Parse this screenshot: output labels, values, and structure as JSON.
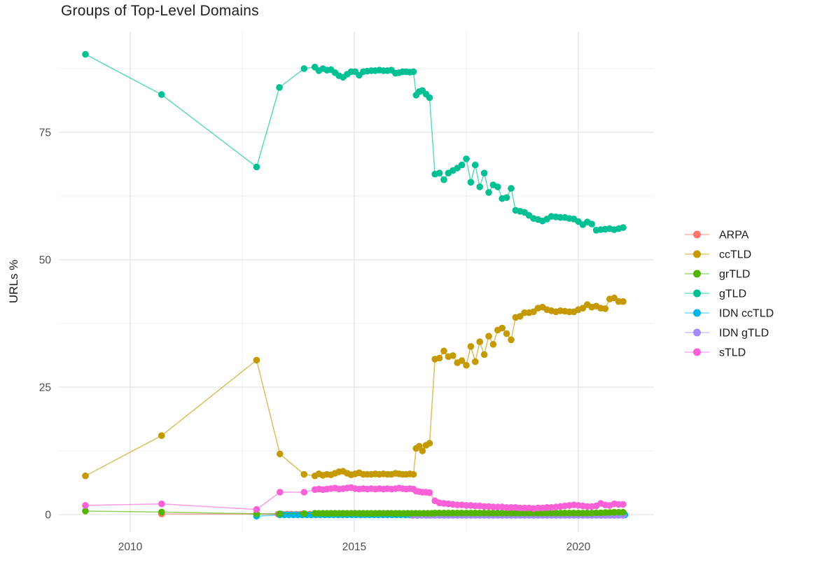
{
  "title": "Groups of Top-Level Domains",
  "y_axis": {
    "label": "URLs %",
    "tick_labels": [
      "0",
      "25",
      "50",
      "75"
    ]
  },
  "x_axis": {
    "tick_labels": [
      "2010",
      "2015",
      "2020"
    ]
  },
  "legend": {
    "items": [
      {
        "label": "ARPA",
        "color": "#F8766D"
      },
      {
        "label": "ccTLD",
        "color": "#C49A00"
      },
      {
        "label": "grTLD",
        "color": "#53B400"
      },
      {
        "label": "gTLD",
        "color": "#00C094"
      },
      {
        "label": "IDN ccTLD",
        "color": "#00B6EB"
      },
      {
        "label": "IDN gTLD",
        "color": "#A58AFF"
      },
      {
        "label": "sTLD",
        "color": "#FB61D7"
      }
    ]
  },
  "chart_data": {
    "type": "line",
    "title": "Groups of Top-Level Domains",
    "xlabel": "",
    "ylabel": "URLs %",
    "xlim": [
      2008.4,
      2021.7
    ],
    "ylim": [
      -4.5,
      94.8
    ],
    "x_ticks": [
      2010,
      2015,
      2020
    ],
    "y_ticks": [
      0,
      25,
      50,
      75
    ],
    "x_minor_ticks": [
      2012.5,
      2017.5
    ],
    "y_minor_ticks": [
      12.5,
      37.5,
      62.5,
      87.5
    ],
    "grid": true,
    "legend_position": "right",
    "series": [
      {
        "name": "gTLD",
        "color": "#00C094",
        "points": [
          [
            2009.0,
            90.3
          ],
          [
            2010.7,
            82.4
          ],
          [
            2012.82,
            68.2
          ],
          [
            2013.33,
            83.8
          ],
          [
            2013.88,
            87.5
          ],
          [
            2014.12,
            87.8
          ],
          [
            2014.21,
            87.1
          ],
          [
            2014.3,
            87.5
          ],
          [
            2014.39,
            87.2
          ],
          [
            2014.48,
            87.3
          ],
          [
            2014.57,
            86.7
          ],
          [
            2014.66,
            86.1
          ],
          [
            2014.75,
            85.8
          ],
          [
            2014.84,
            86.4
          ],
          [
            2014.93,
            86.9
          ],
          [
            2015.02,
            86.9
          ],
          [
            2015.11,
            86.2
          ],
          [
            2015.2,
            86.9
          ],
          [
            2015.29,
            87.0
          ],
          [
            2015.38,
            87.1
          ],
          [
            2015.47,
            87.1
          ],
          [
            2015.56,
            87.2
          ],
          [
            2015.65,
            87.1
          ],
          [
            2015.74,
            87.1
          ],
          [
            2015.83,
            87.2
          ],
          [
            2015.92,
            86.6
          ],
          [
            2016.0,
            86.7
          ],
          [
            2016.08,
            86.9
          ],
          [
            2016.16,
            86.9
          ],
          [
            2016.24,
            86.8
          ],
          [
            2016.32,
            86.9
          ],
          [
            2016.38,
            82.3
          ],
          [
            2016.45,
            83.0
          ],
          [
            2016.52,
            83.2
          ],
          [
            2016.6,
            82.5
          ],
          [
            2016.68,
            81.8
          ],
          [
            2016.8,
            66.8
          ],
          [
            2016.9,
            67.0
          ],
          [
            2017.0,
            65.7
          ],
          [
            2017.1,
            67.0
          ],
          [
            2017.2,
            67.5
          ],
          [
            2017.3,
            68.0
          ],
          [
            2017.4,
            68.6
          ],
          [
            2017.5,
            69.8
          ],
          [
            2017.6,
            65.2
          ],
          [
            2017.7,
            68.6
          ],
          [
            2017.8,
            64.3
          ],
          [
            2017.9,
            67.0
          ],
          [
            2018.0,
            63.2
          ],
          [
            2018.1,
            64.7
          ],
          [
            2018.2,
            64.3
          ],
          [
            2018.3,
            62.0
          ],
          [
            2018.4,
            62.2
          ],
          [
            2018.5,
            64.0
          ],
          [
            2018.6,
            59.7
          ],
          [
            2018.7,
            59.5
          ],
          [
            2018.8,
            59.3
          ],
          [
            2018.9,
            58.7
          ],
          [
            2019.0,
            58.1
          ],
          [
            2019.1,
            57.9
          ],
          [
            2019.2,
            57.6
          ],
          [
            2019.3,
            58.0
          ],
          [
            2019.4,
            58.5
          ],
          [
            2019.5,
            58.4
          ],
          [
            2019.6,
            58.3
          ],
          [
            2019.7,
            58.3
          ],
          [
            2019.8,
            58.1
          ],
          [
            2019.9,
            58.0
          ],
          [
            2020.0,
            57.5
          ],
          [
            2020.1,
            56.9
          ],
          [
            2020.2,
            57.4
          ],
          [
            2020.3,
            57.0
          ],
          [
            2020.4,
            55.8
          ],
          [
            2020.5,
            55.9
          ],
          [
            2020.6,
            56.0
          ],
          [
            2020.7,
            56.1
          ],
          [
            2020.8,
            55.9
          ],
          [
            2020.9,
            56.1
          ],
          [
            2021.0,
            56.3
          ]
        ]
      },
      {
        "name": "ccTLD",
        "color": "#C49A00",
        "points": [
          [
            2009.0,
            7.6
          ],
          [
            2010.7,
            15.5
          ],
          [
            2012.82,
            30.3
          ],
          [
            2013.34,
            11.9
          ],
          [
            2013.88,
            7.9
          ],
          [
            2014.12,
            7.6
          ],
          [
            2014.21,
            8.0
          ],
          [
            2014.3,
            7.7
          ],
          [
            2014.39,
            7.9
          ],
          [
            2014.48,
            7.8
          ],
          [
            2014.57,
            8.1
          ],
          [
            2014.66,
            8.4
          ],
          [
            2014.75,
            8.5
          ],
          [
            2014.84,
            8.1
          ],
          [
            2014.93,
            7.8
          ],
          [
            2015.02,
            8.0
          ],
          [
            2015.11,
            8.2
          ],
          [
            2015.2,
            7.9
          ],
          [
            2015.29,
            7.9
          ],
          [
            2015.38,
            7.9
          ],
          [
            2015.47,
            8.0
          ],
          [
            2015.56,
            7.9
          ],
          [
            2015.65,
            8.0
          ],
          [
            2015.74,
            7.9
          ],
          [
            2015.83,
            7.9
          ],
          [
            2015.92,
            8.1
          ],
          [
            2016.0,
            8.0
          ],
          [
            2016.08,
            7.9
          ],
          [
            2016.16,
            7.9
          ],
          [
            2016.24,
            8.0
          ],
          [
            2016.32,
            7.9
          ],
          [
            2016.38,
            13.0
          ],
          [
            2016.45,
            13.4
          ],
          [
            2016.52,
            12.5
          ],
          [
            2016.6,
            13.6
          ],
          [
            2016.68,
            14.0
          ],
          [
            2016.8,
            30.5
          ],
          [
            2016.9,
            30.7
          ],
          [
            2017.0,
            32.1
          ],
          [
            2017.1,
            31.0
          ],
          [
            2017.2,
            31.2
          ],
          [
            2017.3,
            29.8
          ],
          [
            2017.4,
            30.2
          ],
          [
            2017.5,
            29.3
          ],
          [
            2017.6,
            33.0
          ],
          [
            2017.7,
            30.0
          ],
          [
            2017.8,
            33.9
          ],
          [
            2017.9,
            31.4
          ],
          [
            2018.0,
            35.0
          ],
          [
            2018.1,
            33.4
          ],
          [
            2018.2,
            36.2
          ],
          [
            2018.3,
            36.6
          ],
          [
            2018.4,
            35.5
          ],
          [
            2018.5,
            34.3
          ],
          [
            2018.6,
            38.7
          ],
          [
            2018.7,
            38.9
          ],
          [
            2018.8,
            39.6
          ],
          [
            2018.9,
            39.6
          ],
          [
            2019.0,
            39.8
          ],
          [
            2019.1,
            40.5
          ],
          [
            2019.2,
            40.7
          ],
          [
            2019.3,
            40.2
          ],
          [
            2019.4,
            40.0
          ],
          [
            2019.5,
            39.8
          ],
          [
            2019.6,
            40.0
          ],
          [
            2019.7,
            39.9
          ],
          [
            2019.8,
            39.8
          ],
          [
            2019.9,
            39.8
          ],
          [
            2020.0,
            40.2
          ],
          [
            2020.1,
            40.5
          ],
          [
            2020.2,
            41.2
          ],
          [
            2020.3,
            40.7
          ],
          [
            2020.4,
            40.9
          ],
          [
            2020.5,
            40.5
          ],
          [
            2020.6,
            40.4
          ],
          [
            2020.7,
            42.3
          ],
          [
            2020.8,
            42.5
          ],
          [
            2020.9,
            41.8
          ],
          [
            2021.0,
            41.8
          ]
        ]
      },
      {
        "name": "sTLD",
        "color": "#FB61D7",
        "points": [
          [
            2009.0,
            1.8
          ],
          [
            2010.7,
            2.1
          ],
          [
            2012.82,
            1.0
          ],
          [
            2013.34,
            4.4
          ],
          [
            2013.88,
            4.4
          ],
          [
            2014.12,
            4.9
          ],
          [
            2014.21,
            5.0
          ],
          [
            2014.3,
            4.9
          ],
          [
            2014.39,
            5.0
          ],
          [
            2014.48,
            5.1
          ],
          [
            2014.57,
            5.2
          ],
          [
            2014.66,
            5.0
          ],
          [
            2014.75,
            5.1
          ],
          [
            2014.84,
            5.2
          ],
          [
            2014.93,
            5.3
          ],
          [
            2015.02,
            5.1
          ],
          [
            2015.11,
            5.0
          ],
          [
            2015.2,
            5.1
          ],
          [
            2015.29,
            5.0
          ],
          [
            2015.38,
            5.1
          ],
          [
            2015.47,
            5.0
          ],
          [
            2015.56,
            5.1
          ],
          [
            2015.65,
            5.0
          ],
          [
            2015.74,
            5.1
          ],
          [
            2015.83,
            5.0
          ],
          [
            2015.92,
            5.1
          ],
          [
            2016.0,
            5.2
          ],
          [
            2016.08,
            5.1
          ],
          [
            2016.16,
            5.0
          ],
          [
            2016.24,
            5.1
          ],
          [
            2016.32,
            5.0
          ],
          [
            2016.38,
            4.6
          ],
          [
            2016.45,
            4.5
          ],
          [
            2016.52,
            4.4
          ],
          [
            2016.6,
            4.4
          ],
          [
            2016.68,
            4.3
          ],
          [
            2016.8,
            2.7
          ],
          [
            2016.9,
            2.3
          ],
          [
            2017.0,
            2.2
          ],
          [
            2017.1,
            2.1
          ],
          [
            2017.2,
            2.0
          ],
          [
            2017.3,
            1.9
          ],
          [
            2017.4,
            1.9
          ],
          [
            2017.5,
            1.8
          ],
          [
            2017.6,
            1.8
          ],
          [
            2017.7,
            1.7
          ],
          [
            2017.8,
            1.7
          ],
          [
            2017.9,
            1.6
          ],
          [
            2018.0,
            1.6
          ],
          [
            2018.1,
            1.5
          ],
          [
            2018.2,
            1.5
          ],
          [
            2018.3,
            1.5
          ],
          [
            2018.4,
            1.4
          ],
          [
            2018.5,
            1.4
          ],
          [
            2018.6,
            1.4
          ],
          [
            2018.7,
            1.3
          ],
          [
            2018.8,
            1.3
          ],
          [
            2018.9,
            1.3
          ],
          [
            2019.0,
            1.2
          ],
          [
            2019.1,
            1.3
          ],
          [
            2019.2,
            1.3
          ],
          [
            2019.3,
            1.4
          ],
          [
            2019.4,
            1.4
          ],
          [
            2019.5,
            1.5
          ],
          [
            2019.6,
            1.6
          ],
          [
            2019.7,
            1.7
          ],
          [
            2019.8,
            1.8
          ],
          [
            2019.9,
            1.9
          ],
          [
            2020.0,
            1.8
          ],
          [
            2020.1,
            1.7
          ],
          [
            2020.2,
            1.6
          ],
          [
            2020.3,
            1.6
          ],
          [
            2020.4,
            1.7
          ],
          [
            2020.5,
            2.2
          ],
          [
            2020.6,
            1.9
          ],
          [
            2020.7,
            1.8
          ],
          [
            2020.8,
            2.1
          ],
          [
            2020.9,
            2.0
          ],
          [
            2021.0,
            2.0
          ]
        ]
      },
      {
        "name": "grTLD",
        "color": "#53B400",
        "points": [
          [
            2009.0,
            0.7
          ],
          [
            2010.7,
            0.5
          ],
          [
            2012.82,
            0.15
          ],
          [
            2013.34,
            0.15
          ],
          [
            2013.88,
            0.2
          ],
          [
            2020.4,
            0.35
          ],
          [
            2020.5,
            0.35
          ],
          [
            2020.6,
            0.4
          ],
          [
            2020.7,
            0.4
          ],
          [
            2020.8,
            0.45
          ],
          [
            2020.9,
            0.45
          ],
          [
            2021.0,
            0.45
          ]
        ],
        "flat": [
          {
            "from": 2014.12,
            "to": 2016.72,
            "step": 0.09,
            "value": 0.25
          },
          {
            "from": 2016.8,
            "to": 2020.3,
            "step": 0.1,
            "value": 0.3
          }
        ]
      },
      {
        "name": "ARPA",
        "color": "#F8766D",
        "points": [
          [
            2010.7,
            0.12
          ],
          [
            2012.82,
            0.1
          ]
        ],
        "flat": [
          {
            "from": 2013.3,
            "to": 2021.0,
            "step": 0.1,
            "value": 0.08
          }
        ]
      },
      {
        "name": "IDN ccTLD",
        "color": "#00B6EB",
        "points": [
          [
            2012.82,
            -0.3
          ]
        ],
        "flat": [
          {
            "from": 2013.34,
            "to": 2021.0,
            "step": 0.1,
            "value": -0.05
          }
        ]
      },
      {
        "name": "IDN gTLD",
        "color": "#A58AFF",
        "points": [],
        "flat": [
          {
            "from": 2016.3,
            "to": 2021.0,
            "step": 0.1,
            "value": -0.15
          }
        ]
      }
    ]
  }
}
